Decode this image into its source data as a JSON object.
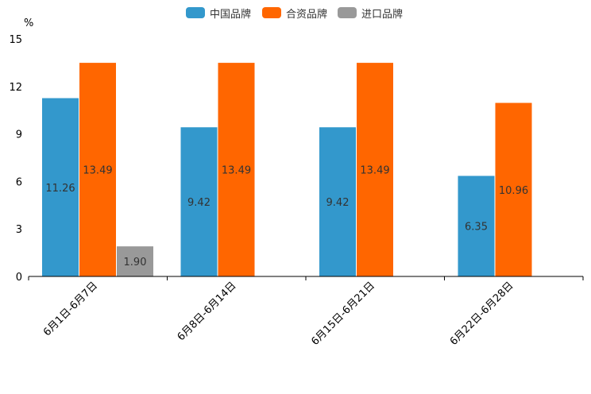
{
  "chart_data": {
    "type": "bar",
    "title": "",
    "ylabel": "%",
    "xlabel": "",
    "ylim": [
      0,
      15
    ],
    "yticks": [
      0,
      3,
      6,
      9,
      12,
      15
    ],
    "categories": [
      "6月1日-6月7日",
      "6月8日-6月14日",
      "6月15日-6月21日",
      "6月22日-6月28日"
    ],
    "series": [
      {
        "name": "中国品牌",
        "color": "#3398cc",
        "values": [
          11.26,
          9.42,
          9.42,
          6.35
        ],
        "labels": [
          "11.26",
          "9.42",
          "9.42",
          "6.35"
        ]
      },
      {
        "name": "合资品牌",
        "color": "#ff6600",
        "values": [
          13.49,
          13.49,
          13.49,
          10.96
        ],
        "labels": [
          "13.49",
          "13.49",
          "13.49",
          "10.96"
        ]
      },
      {
        "name": "进口品牌",
        "color": "#999999",
        "values": [
          1.9,
          null,
          null,
          null
        ],
        "labels": [
          "1.90",
          null,
          null,
          null
        ]
      }
    ],
    "legend_position": "top-center"
  }
}
